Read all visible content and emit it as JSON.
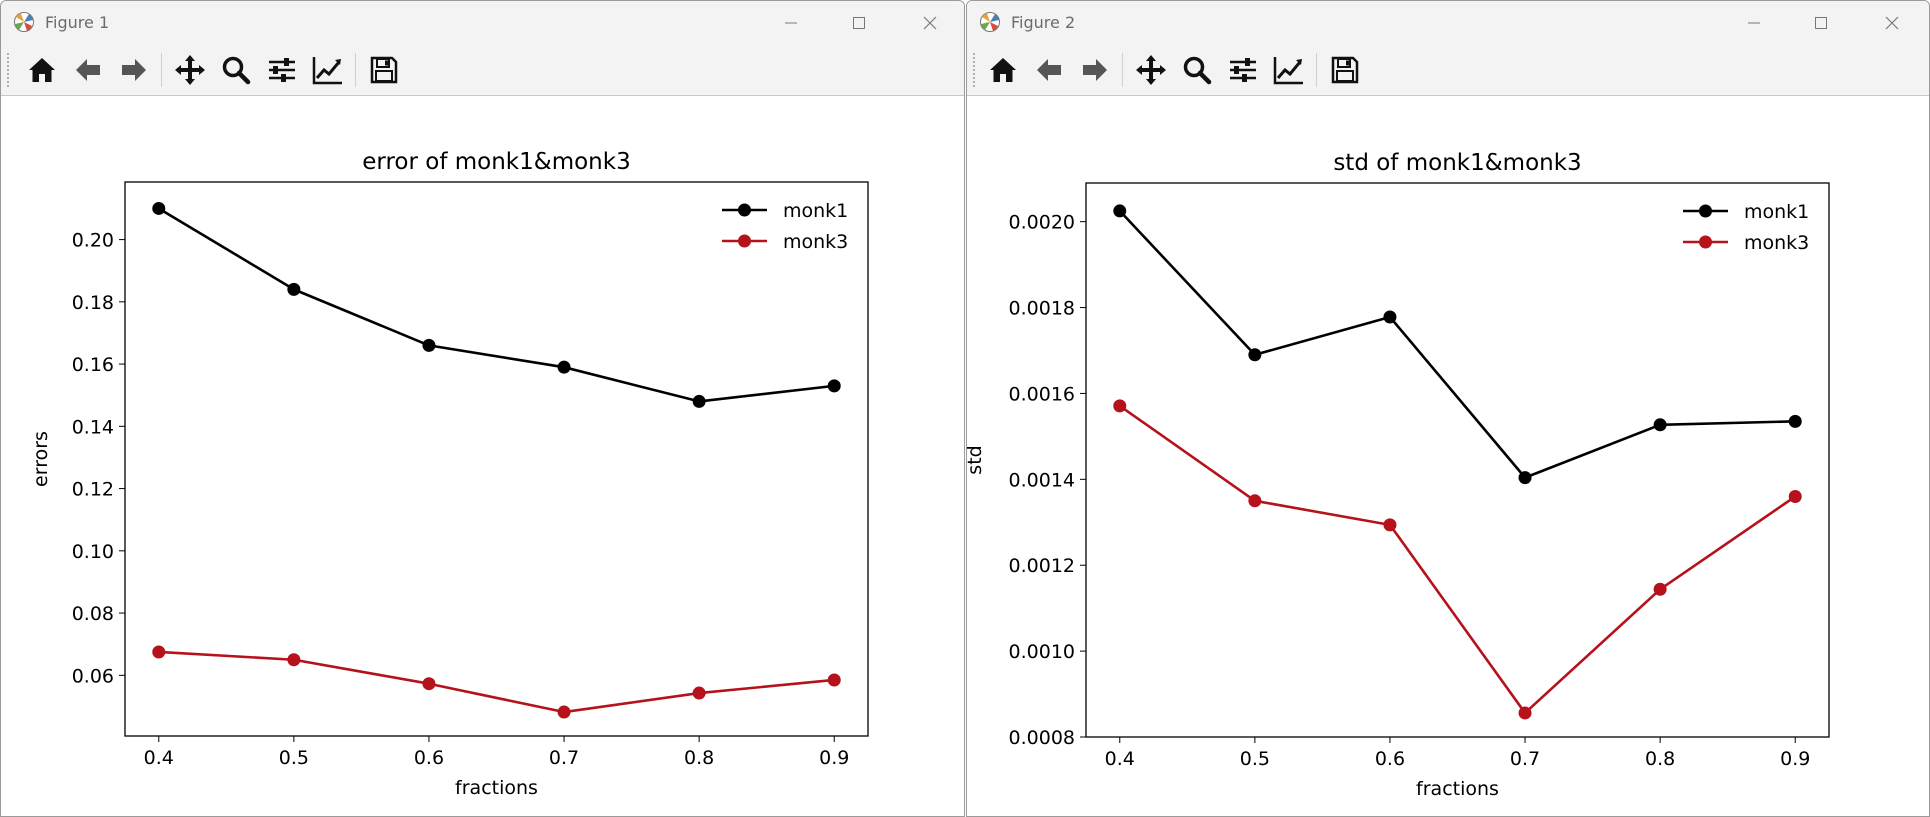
{
  "windows": [
    {
      "title": "Figure 1",
      "chart_data": {
        "type": "line",
        "title": "error of monk1&monk3",
        "xlabel": "fractions",
        "ylabel": "errors",
        "x": [
          0.4,
          0.5,
          0.6,
          0.7,
          0.8,
          0.9
        ],
        "xticks": [
          "0.4",
          "0.5",
          "0.6",
          "0.7",
          "0.8",
          "0.9"
        ],
        "xlim": [
          0.375,
          0.925
        ],
        "ylim": [
          0.0405,
          0.2185
        ],
        "yticks": [
          "0.06",
          "0.08",
          "0.10",
          "0.12",
          "0.14",
          "0.16",
          "0.18",
          "0.20"
        ],
        "grid": false,
        "legend_position": "top-right",
        "series": [
          {
            "name": "monk1",
            "color": "#000000",
            "values": [
              0.21,
              0.184,
              0.166,
              0.159,
              0.148,
              0.153
            ]
          },
          {
            "name": "monk3",
            "color": "#b5121b",
            "values": [
              0.0675,
              0.065,
              0.0573,
              0.0482,
              0.0543,
              0.0585
            ]
          }
        ]
      }
    },
    {
      "title": "Figure 2",
      "chart_data": {
        "type": "line",
        "title": "std of monk1&monk3",
        "xlabel": "fractions",
        "ylabel": "std",
        "x": [
          0.4,
          0.5,
          0.6,
          0.7,
          0.8,
          0.9
        ],
        "xticks": [
          "0.4",
          "0.5",
          "0.6",
          "0.7",
          "0.8",
          "0.9"
        ],
        "xlim": [
          0.375,
          0.925
        ],
        "ylim": [
          0.0008,
          0.00209
        ],
        "yticks": [
          "0.0008",
          "0.0010",
          "0.0012",
          "0.0014",
          "0.0016",
          "0.0018",
          "0.0020"
        ],
        "grid": false,
        "legend_position": "top-right",
        "series": [
          {
            "name": "monk1",
            "color": "#000000",
            "values": [
              0.002025,
              0.00169,
              0.001778,
              0.001404,
              0.001527,
              0.001535
            ]
          },
          {
            "name": "monk3",
            "color": "#b5121b",
            "values": [
              0.001571,
              0.00135,
              0.001294,
              0.000856,
              0.001144,
              0.00136
            ]
          }
        ]
      }
    }
  ],
  "toolbar": {
    "buttons": [
      "home-icon",
      "back-arrow-icon",
      "forward-arrow-icon",
      "move-icon",
      "zoom-icon",
      "configure-subplots-icon",
      "edit-axis-icon",
      "save-icon"
    ]
  },
  "colors": {
    "monk1": "#000000",
    "monk3": "#b5121b"
  }
}
